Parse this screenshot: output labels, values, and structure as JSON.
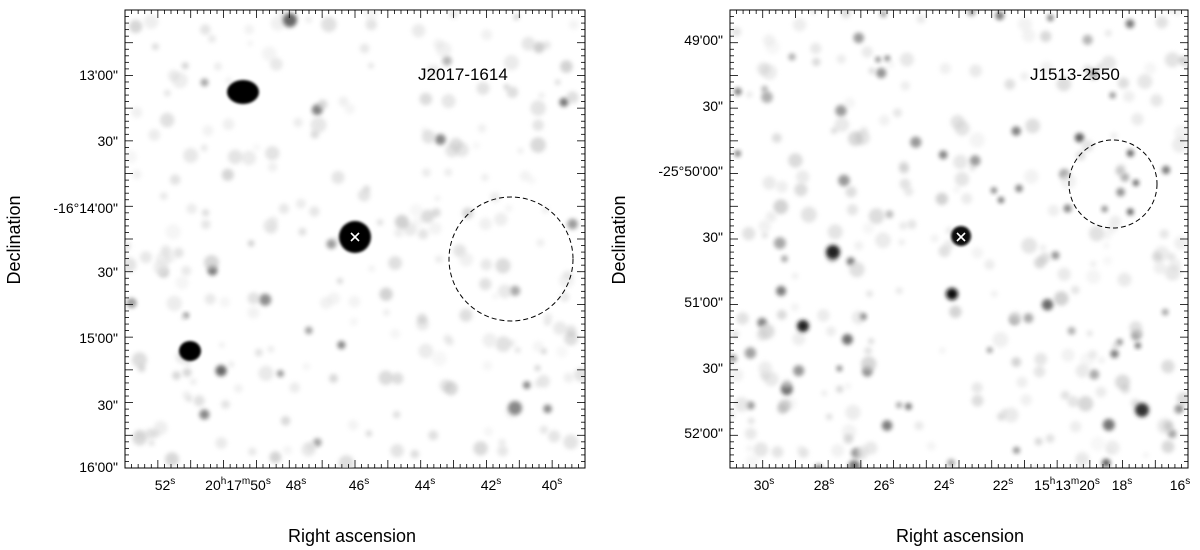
{
  "panels": [
    {
      "id": "left",
      "source_label": "J2017-1614",
      "xlabel": "Right ascension",
      "ylabel": "Declination",
      "ra_ticks": [
        {
          "label": "52",
          "sup": "s"
        },
        {
          "label": "20",
          "sup": "h",
          "label2": "17",
          "sup2": "m",
          "label3": "50",
          "sup3": "s"
        },
        {
          "label": "48",
          "sup": "s"
        },
        {
          "label": "46",
          "sup": "s"
        },
        {
          "label": "44",
          "sup": "s"
        },
        {
          "label": "42",
          "sup": "s"
        },
        {
          "label": "40",
          "sup": "s"
        }
      ],
      "dec_ticks": [
        "13'00\"",
        "30\"",
        "-16°14'00\"",
        "30\"",
        "15'00\"",
        "30\"",
        "16'00\""
      ]
    },
    {
      "id": "right",
      "source_label": "J1513-2550",
      "xlabel": "Right ascension",
      "ylabel": "Declination",
      "ra_ticks": [
        {
          "label": "30",
          "sup": "s"
        },
        {
          "label": "28",
          "sup": "s"
        },
        {
          "label": "26",
          "sup": "s"
        },
        {
          "label": "24",
          "sup": "s"
        },
        {
          "label": "22",
          "sup": "s"
        },
        {
          "label": "15",
          "sup": "h",
          "label2": "13",
          "sup2": "m",
          "label3": "20",
          "sup3": "s"
        },
        {
          "label": "18",
          "sup": "s"
        },
        {
          "label": "16",
          "sup": "s"
        }
      ],
      "dec_ticks": [
        "49'00\"",
        "30\"",
        "-25°50'00\"",
        "30\"",
        "51'00\"",
        "30\"",
        "52'00\""
      ]
    }
  ],
  "colors": {
    "source": "#000000",
    "background": "#ffffff",
    "marker": "#ffffff",
    "circle": "#000000"
  }
}
